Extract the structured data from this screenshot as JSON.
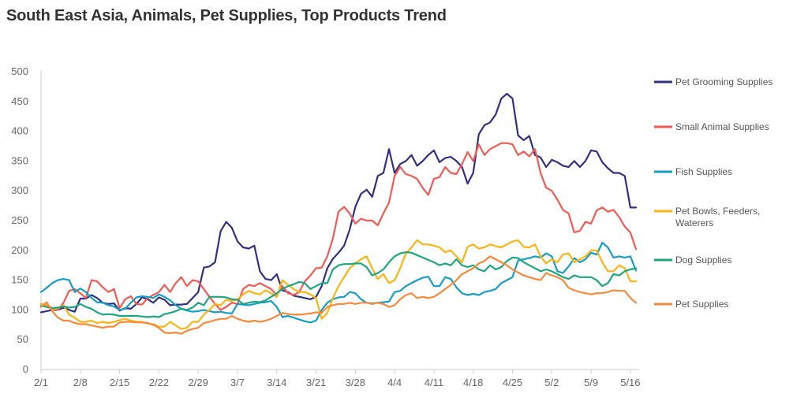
{
  "chart_data": {
    "type": "line",
    "title": "South East Asia, Animals, Pet Supplies, Top Products Trend",
    "xlabel": "",
    "ylabel": "",
    "ylim": [
      0,
      500
    ],
    "yticks": [
      0,
      50,
      100,
      150,
      200,
      250,
      300,
      350,
      400,
      450,
      500
    ],
    "grid": false,
    "legend_position": "right",
    "x_start": "2/1",
    "x_end": "5/17",
    "xtick_labels": [
      "2/1",
      "2/8",
      "2/15",
      "2/22",
      "2/29",
      "3/7",
      "3/14",
      "3/21",
      "3/28",
      "4/4",
      "4/11",
      "4/18",
      "4/25",
      "5/2",
      "5/9",
      "5/16"
    ],
    "series": [
      {
        "name": "Pet Grooming Supplies",
        "color": "#33307f",
        "values": [
          96,
          98,
          100,
          100,
          104,
          100,
          97,
          119,
          119,
          125,
          120,
          112,
          110,
          111,
          99,
          103,
          102,
          110,
          121,
          118,
          112,
          121,
          117,
          108,
          109,
          109,
          110,
          120,
          130,
          171,
          173,
          180,
          232,
          248,
          238,
          215,
          205,
          203,
          208,
          165,
          152,
          150,
          160,
          133,
          130,
          124,
          122,
          120,
          118,
          122,
          140,
          170,
          186,
          196,
          208,
          235,
          273,
          295,
          302,
          290,
          325,
          330,
          370,
          330,
          345,
          350,
          360,
          342,
          350,
          360,
          368,
          348,
          355,
          357,
          350,
          340,
          312,
          330,
          395,
          410,
          415,
          428,
          455,
          463,
          455,
          393,
          385,
          392,
          360,
          356,
          340,
          352,
          348,
          342,
          340,
          350,
          340,
          350,
          368,
          366,
          348,
          338,
          330,
          330,
          325,
          272,
          272
        ]
      },
      {
        "name": "Small Animal Supplies",
        "color": "#f25a55",
        "values": [
          110,
          108,
          103,
          100,
          112,
          132,
          135,
          128,
          120,
          150,
          148,
          138,
          130,
          135,
          103,
          118,
          123,
          110,
          109,
          120,
          125,
          130,
          142,
          130,
          145,
          155,
          140,
          150,
          148,
          135,
          122,
          110,
          100,
          105,
          112,
          110,
          135,
          142,
          140,
          145,
          140,
          135,
          125,
          140,
          128,
          125,
          130,
          148,
          158,
          170,
          171,
          190,
          220,
          265,
          273,
          262,
          245,
          253,
          250,
          250,
          242,
          262,
          280,
          325,
          340,
          328,
          325,
          320,
          305,
          293,
          320,
          323,
          340,
          330,
          328,
          345,
          365,
          350,
          378,
          360,
          370,
          375,
          380,
          380,
          378,
          360,
          366,
          358,
          370,
          330,
          305,
          300,
          285,
          268,
          262,
          230,
          233,
          248,
          245,
          267,
          272,
          265,
          268,
          256,
          240,
          230,
          202
        ]
      },
      {
        "name": "Fish Supplies",
        "color": "#169dc4",
        "values": [
          130,
          137,
          145,
          150,
          152,
          150,
          130,
          136,
          130,
          120,
          113,
          112,
          108,
          106,
          100,
          102,
          112,
          121,
          123,
          122,
          120,
          126,
          122,
          116,
          108,
          102,
          99,
          97,
          98,
          100,
          98,
          96,
          97,
          95,
          94,
          110,
          109,
          108,
          110,
          112,
          113,
          115,
          105,
          88,
          90,
          87,
          84,
          81,
          79,
          82,
          100,
          112,
          118,
          121,
          122,
          130,
          128,
          118,
          112,
          111,
          112,
          113,
          114,
          130,
          132,
          140,
          145,
          150,
          154,
          156,
          140,
          140,
          155,
          152,
          138,
          128,
          125,
          127,
          125,
          130,
          132,
          135,
          145,
          150,
          155,
          183,
          185,
          187,
          190,
          188,
          195,
          190,
          165,
          162,
          173,
          187,
          180,
          185,
          196,
          193,
          213,
          205,
          188,
          190,
          188,
          190,
          166
        ]
      },
      {
        "name": "Pet Bowls, Feeders, Waterers",
        "color": "#f9b516",
        "values": [
          110,
          107,
          100,
          103,
          108,
          92,
          87,
          80,
          80,
          82,
          78,
          80,
          78,
          80,
          83,
          85,
          82,
          80,
          80,
          77,
          76,
          72,
          72,
          80,
          74,
          68,
          70,
          80,
          80,
          92,
          100,
          110,
          108,
          117,
          115,
          118,
          126,
          132,
          128,
          126,
          133,
          128,
          122,
          150,
          142,
          135,
          130,
          130,
          126,
          120,
          85,
          95,
          120,
          140,
          155,
          170,
          178,
          185,
          190,
          170,
          152,
          160,
          145,
          150,
          170,
          195,
          205,
          217,
          210,
          210,
          208,
          205,
          197,
          200,
          190,
          180,
          206,
          210,
          203,
          205,
          210,
          207,
          205,
          210,
          215,
          217,
          206,
          205,
          210,
          190,
          178,
          185,
          180,
          193,
          195,
          180,
          185,
          190,
          200,
          200,
          180,
          165,
          165,
          175,
          170,
          148,
          148
        ]
      },
      {
        "name": "Dog Supplies",
        "color": "#1fa580",
        "values": [
          107,
          105,
          103,
          104,
          106,
          104,
          105,
          110,
          105,
          102,
          96,
          92,
          93,
          92,
          90,
          90,
          90,
          90,
          89,
          88,
          89,
          88,
          93,
          95,
          98,
          102,
          100,
          104,
          112,
          108,
          122,
          122,
          122,
          121,
          118,
          117,
          110,
          112,
          114,
          113,
          116,
          122,
          128,
          135,
          140,
          143,
          147,
          145,
          135,
          140,
          145,
          145,
          168,
          175,
          177,
          177,
          178,
          178,
          172,
          158,
          162,
          168,
          180,
          190,
          195,
          197,
          196,
          192,
          188,
          184,
          180,
          175,
          178,
          175,
          185,
          175,
          172,
          175,
          168,
          165,
          175,
          168,
          172,
          182,
          188,
          187,
          180,
          175,
          170,
          165,
          168,
          165,
          160,
          155,
          152,
          158,
          155,
          155,
          155,
          150,
          140,
          145,
          160,
          158,
          165,
          168,
          170
        ]
      },
      {
        "name": "Pet Supplies",
        "color": "#f58a3d",
        "values": [
          105,
          113,
          98,
          87,
          82,
          82,
          78,
          76,
          76,
          74,
          72,
          70,
          72,
          72,
          79,
          80,
          80,
          79,
          79,
          78,
          75,
          70,
          62,
          61,
          62,
          60,
          65,
          68,
          70,
          78,
          80,
          83,
          85,
          85,
          90,
          85,
          82,
          80,
          82,
          80,
          82,
          85,
          90,
          95,
          93,
          92,
          92,
          93,
          94,
          96,
          95,
          105,
          108,
          110,
          110,
          112,
          110,
          112,
          112,
          110,
          112,
          110,
          105,
          108,
          118,
          125,
          128,
          120,
          122,
          120,
          122,
          128,
          135,
          142,
          150,
          160,
          165,
          170,
          178,
          182,
          190,
          185,
          180,
          175,
          168,
          163,
          158,
          155,
          152,
          150,
          162,
          158,
          155,
          150,
          137,
          133,
          130,
          128,
          126,
          128,
          128,
          130,
          133,
          132,
          132,
          120,
          112
        ]
      }
    ]
  }
}
